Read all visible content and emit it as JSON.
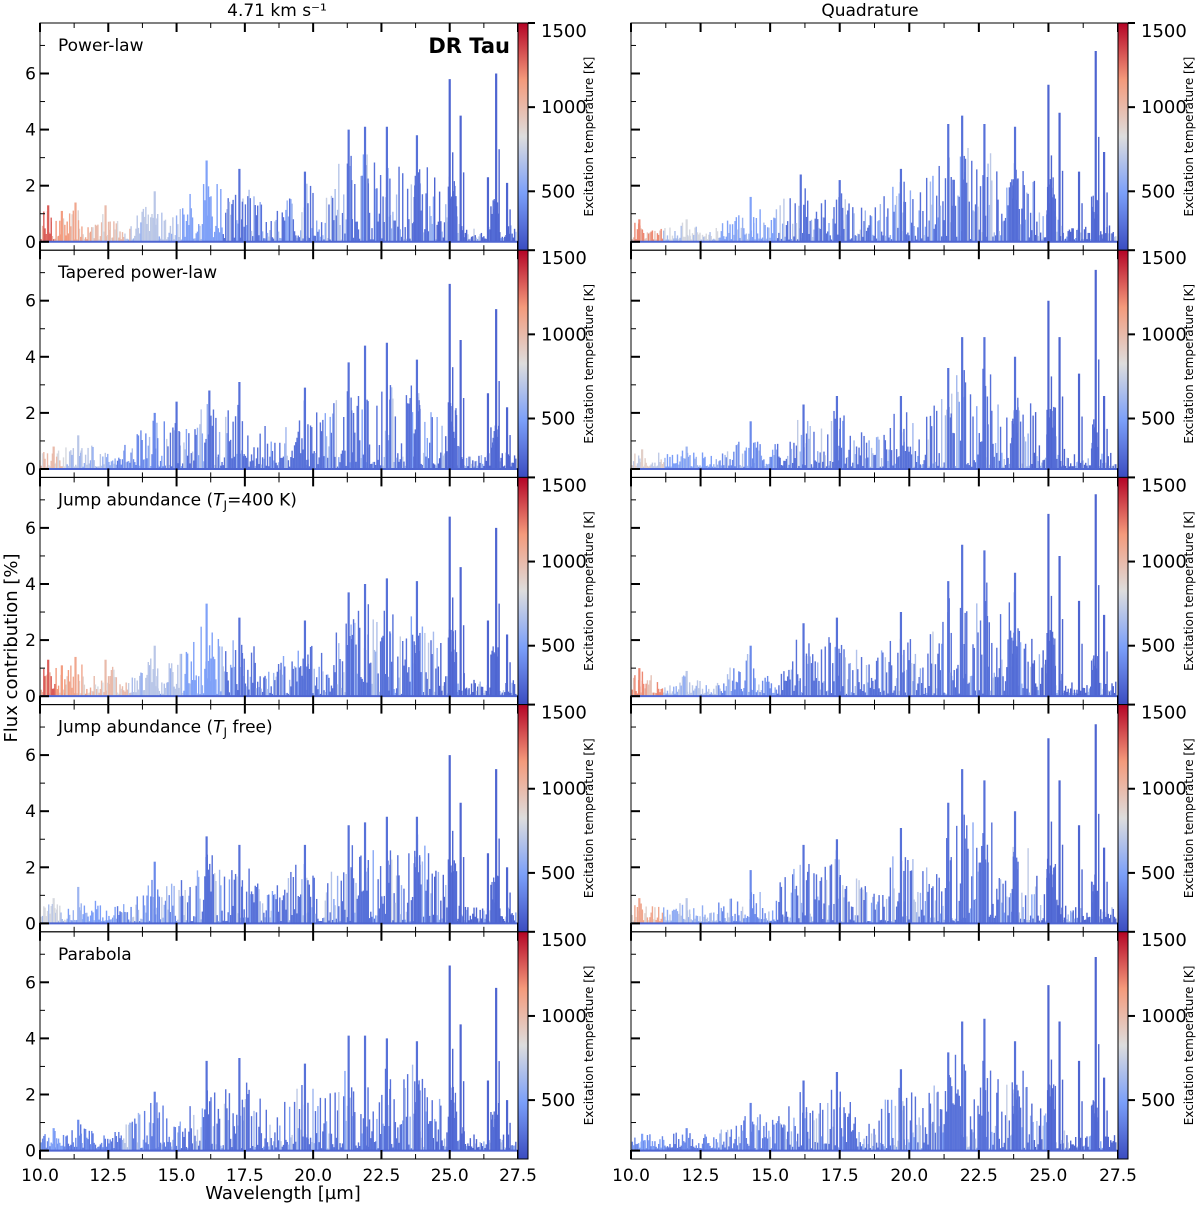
{
  "figure": {
    "star_label": "DR Tau",
    "ylabel": "Flux contribution [%]",
    "xlabel": "Wavelength [µm]",
    "column_titles": [
      "4.71 km s⁻¹",
      "Quadrature"
    ]
  },
  "colorbar": {
    "label": "Excitation temperature [K]",
    "ticks": [
      1500,
      1000,
      500
    ],
    "range": [
      150,
      1500
    ],
    "colormap": "coolwarm",
    "colors": {
      "low": "#3b4cc0",
      "mid": "#dddddd",
      "high": "#b40426"
    }
  },
  "chart_data": [
    {
      "type": "bar",
      "title": "Power-law",
      "column": "4.71 km s⁻¹",
      "xlim": [
        10.0,
        27.5
      ],
      "ylim": [
        -0.3,
        7.8
      ],
      "xticks": [
        10.0,
        12.5,
        15.0,
        17.5,
        20.0,
        22.5,
        25.0,
        27.5
      ],
      "yticks": [
        0,
        2,
        4,
        6
      ],
      "peaks": [
        {
          "x": 10.3,
          "y": 1.3,
          "t": 1300
        },
        {
          "x": 10.8,
          "y": 1.1,
          "t": 1150
        },
        {
          "x": 11.3,
          "y": 1.4,
          "t": 1100
        },
        {
          "x": 12.4,
          "y": 1.3,
          "t": 1000
        },
        {
          "x": 14.2,
          "y": 1.8,
          "t": 700
        },
        {
          "x": 16.1,
          "y": 2.9,
          "t": 500
        },
        {
          "x": 17.3,
          "y": 2.6,
          "t": 300
        },
        {
          "x": 19.7,
          "y": 2.5,
          "t": 300
        },
        {
          "x": 21.3,
          "y": 4.0,
          "t": 300
        },
        {
          "x": 21.9,
          "y": 4.1,
          "t": 300
        },
        {
          "x": 22.7,
          "y": 4.1,
          "t": 300
        },
        {
          "x": 23.8,
          "y": 3.8,
          "t": 300
        },
        {
          "x": 25.0,
          "y": 5.8,
          "t": 250
        },
        {
          "x": 25.4,
          "y": 4.5,
          "t": 250
        },
        {
          "x": 26.4,
          "y": 2.3,
          "t": 250
        },
        {
          "x": 26.7,
          "y": 6.0,
          "t": 250
        },
        {
          "x": 27.1,
          "y": 2.1,
          "t": 250
        }
      ]
    },
    {
      "type": "bar",
      "title": "",
      "column": "Quadrature",
      "xlim": [
        10.0,
        27.5
      ],
      "ylim": [
        -0.3,
        7.8
      ],
      "xticks": [
        10.0,
        12.5,
        15.0,
        17.5,
        20.0,
        22.5,
        25.0,
        27.5
      ],
      "yticks": [
        0,
        2,
        4,
        6
      ],
      "peaks": [
        {
          "x": 10.3,
          "y": 0.8,
          "t": 1200
        },
        {
          "x": 12.0,
          "y": 0.8,
          "t": 800
        },
        {
          "x": 14.3,
          "y": 1.6,
          "t": 500
        },
        {
          "x": 16.1,
          "y": 2.4,
          "t": 300
        },
        {
          "x": 17.5,
          "y": 2.2,
          "t": 300
        },
        {
          "x": 19.7,
          "y": 2.6,
          "t": 300
        },
        {
          "x": 21.4,
          "y": 4.2,
          "t": 300
        },
        {
          "x": 21.9,
          "y": 4.5,
          "t": 300
        },
        {
          "x": 22.7,
          "y": 4.2,
          "t": 300
        },
        {
          "x": 23.8,
          "y": 4.1,
          "t": 300
        },
        {
          "x": 25.0,
          "y": 5.6,
          "t": 250
        },
        {
          "x": 25.4,
          "y": 4.6,
          "t": 250
        },
        {
          "x": 26.1,
          "y": 2.5,
          "t": 250
        },
        {
          "x": 26.7,
          "y": 6.8,
          "t": 250
        },
        {
          "x": 27.0,
          "y": 3.2,
          "t": 250
        }
      ]
    },
    {
      "type": "bar",
      "title": "Tapered power-law",
      "column": "4.71 km s⁻¹",
      "xlim": [
        10.0,
        27.5
      ],
      "ylim": [
        -0.3,
        7.8
      ],
      "xticks": [
        10.0,
        12.5,
        15.0,
        17.5,
        20.0,
        22.5,
        25.0,
        27.5
      ],
      "yticks": [
        0,
        2,
        4,
        6
      ],
      "peaks": [
        {
          "x": 10.5,
          "y": 0.8,
          "t": 1000
        },
        {
          "x": 11.4,
          "y": 1.2,
          "t": 700
        },
        {
          "x": 14.2,
          "y": 2.0,
          "t": 400
        },
        {
          "x": 15.0,
          "y": 2.4,
          "t": 300
        },
        {
          "x": 16.2,
          "y": 2.8,
          "t": 300
        },
        {
          "x": 17.3,
          "y": 3.1,
          "t": 300
        },
        {
          "x": 19.7,
          "y": 2.9,
          "t": 300
        },
        {
          "x": 21.3,
          "y": 3.8,
          "t": 300
        },
        {
          "x": 21.9,
          "y": 4.4,
          "t": 300
        },
        {
          "x": 22.7,
          "y": 4.5,
          "t": 300
        },
        {
          "x": 23.8,
          "y": 3.9,
          "t": 300
        },
        {
          "x": 25.0,
          "y": 6.6,
          "t": 250
        },
        {
          "x": 25.4,
          "y": 4.6,
          "t": 250
        },
        {
          "x": 26.4,
          "y": 2.7,
          "t": 250
        },
        {
          "x": 26.7,
          "y": 5.7,
          "t": 250
        },
        {
          "x": 27.1,
          "y": 2.2,
          "t": 250
        }
      ]
    },
    {
      "type": "bar",
      "title": "",
      "column": "Quadrature",
      "xlim": [
        10.0,
        27.5
      ],
      "ylim": [
        -0.3,
        7.8
      ],
      "xticks": [
        10.0,
        12.5,
        15.0,
        17.5,
        20.0,
        22.5,
        25.0,
        27.5
      ],
      "yticks": [
        0,
        2,
        4,
        6
      ],
      "peaks": [
        {
          "x": 10.4,
          "y": 0.7,
          "t": 900
        },
        {
          "x": 12.0,
          "y": 0.8,
          "t": 600
        },
        {
          "x": 14.3,
          "y": 1.7,
          "t": 400
        },
        {
          "x": 16.2,
          "y": 2.3,
          "t": 300
        },
        {
          "x": 17.4,
          "y": 2.6,
          "t": 300
        },
        {
          "x": 19.7,
          "y": 2.6,
          "t": 300
        },
        {
          "x": 21.4,
          "y": 3.6,
          "t": 300
        },
        {
          "x": 21.9,
          "y": 4.7,
          "t": 300
        },
        {
          "x": 22.7,
          "y": 4.7,
          "t": 300
        },
        {
          "x": 23.8,
          "y": 4.0,
          "t": 300
        },
        {
          "x": 25.0,
          "y": 6.0,
          "t": 250
        },
        {
          "x": 25.4,
          "y": 4.7,
          "t": 250
        },
        {
          "x": 26.1,
          "y": 3.4,
          "t": 250
        },
        {
          "x": 26.7,
          "y": 7.1,
          "t": 250
        },
        {
          "x": 27.0,
          "y": 2.6,
          "t": 250
        }
      ]
    },
    {
      "type": "bar",
      "title": "Jump abundance (T_J=400 K)",
      "title_parts": {
        "before": "Jump abundance (",
        "italic": "T",
        "sub": "J",
        "after": "=400 K)"
      },
      "column": "4.71 km s⁻¹",
      "xlim": [
        10.0,
        27.5
      ],
      "ylim": [
        -0.3,
        7.8
      ],
      "xticks": [
        10.0,
        12.5,
        15.0,
        17.5,
        20.0,
        22.5,
        25.0,
        27.5
      ],
      "yticks": [
        0,
        2,
        4,
        6
      ],
      "peaks": [
        {
          "x": 10.3,
          "y": 1.3,
          "t": 1300
        },
        {
          "x": 10.8,
          "y": 1.1,
          "t": 1150
        },
        {
          "x": 11.3,
          "y": 1.4,
          "t": 1100
        },
        {
          "x": 12.4,
          "y": 1.3,
          "t": 1000
        },
        {
          "x": 14.2,
          "y": 1.8,
          "t": 700
        },
        {
          "x": 16.1,
          "y": 3.3,
          "t": 500
        },
        {
          "x": 17.3,
          "y": 2.8,
          "t": 300
        },
        {
          "x": 19.7,
          "y": 2.7,
          "t": 300
        },
        {
          "x": 21.3,
          "y": 3.7,
          "t": 300
        },
        {
          "x": 21.9,
          "y": 4.0,
          "t": 300
        },
        {
          "x": 22.7,
          "y": 4.2,
          "t": 300
        },
        {
          "x": 23.8,
          "y": 4.1,
          "t": 300
        },
        {
          "x": 25.0,
          "y": 6.4,
          "t": 250
        },
        {
          "x": 25.4,
          "y": 4.6,
          "t": 250
        },
        {
          "x": 26.4,
          "y": 2.7,
          "t": 250
        },
        {
          "x": 26.7,
          "y": 6.0,
          "t": 250
        },
        {
          "x": 27.1,
          "y": 2.2,
          "t": 250
        }
      ]
    },
    {
      "type": "bar",
      "title": "",
      "column": "Quadrature",
      "xlim": [
        10.0,
        27.5
      ],
      "ylim": [
        -0.3,
        7.8
      ],
      "xticks": [
        10.0,
        12.5,
        15.0,
        17.5,
        20.0,
        22.5,
        25.0,
        27.5
      ],
      "yticks": [
        0,
        2,
        4,
        6
      ],
      "peaks": [
        {
          "x": 10.3,
          "y": 1.0,
          "t": 1200
        },
        {
          "x": 12.0,
          "y": 0.9,
          "t": 700
        },
        {
          "x": 14.3,
          "y": 1.8,
          "t": 400
        },
        {
          "x": 16.2,
          "y": 2.6,
          "t": 300
        },
        {
          "x": 17.4,
          "y": 2.8,
          "t": 300
        },
        {
          "x": 19.7,
          "y": 3.0,
          "t": 300
        },
        {
          "x": 21.4,
          "y": 4.1,
          "t": 300
        },
        {
          "x": 21.9,
          "y": 5.4,
          "t": 300
        },
        {
          "x": 22.7,
          "y": 5.2,
          "t": 300
        },
        {
          "x": 23.8,
          "y": 4.4,
          "t": 300
        },
        {
          "x": 25.0,
          "y": 6.5,
          "t": 250
        },
        {
          "x": 25.4,
          "y": 5.0,
          "t": 250
        },
        {
          "x": 26.1,
          "y": 3.4,
          "t": 250
        },
        {
          "x": 26.7,
          "y": 7.2,
          "t": 250
        },
        {
          "x": 27.0,
          "y": 2.9,
          "t": 250
        }
      ]
    },
    {
      "type": "bar",
      "title": "Jump abundance (T_J free)",
      "title_parts": {
        "before": "Jump abundance (",
        "italic": "T",
        "sub": "J",
        "after": " free)"
      },
      "column": "4.71 km s⁻¹",
      "xlim": [
        10.0,
        27.5
      ],
      "ylim": [
        -0.3,
        7.8
      ],
      "xticks": [
        10.0,
        12.5,
        15.0,
        17.5,
        20.0,
        22.5,
        25.0,
        27.5
      ],
      "yticks": [
        0,
        2,
        4,
        6
      ],
      "peaks": [
        {
          "x": 10.5,
          "y": 0.9,
          "t": 800
        },
        {
          "x": 11.4,
          "y": 1.3,
          "t": 600
        },
        {
          "x": 14.2,
          "y": 2.2,
          "t": 400
        },
        {
          "x": 16.1,
          "y": 3.1,
          "t": 300
        },
        {
          "x": 17.3,
          "y": 2.8,
          "t": 300
        },
        {
          "x": 19.7,
          "y": 2.8,
          "t": 300
        },
        {
          "x": 21.3,
          "y": 3.5,
          "t": 300
        },
        {
          "x": 21.9,
          "y": 3.6,
          "t": 300
        },
        {
          "x": 22.7,
          "y": 3.8,
          "t": 300
        },
        {
          "x": 23.8,
          "y": 3.8,
          "t": 300
        },
        {
          "x": 25.0,
          "y": 6.0,
          "t": 250
        },
        {
          "x": 25.4,
          "y": 4.3,
          "t": 250
        },
        {
          "x": 26.4,
          "y": 2.5,
          "t": 250
        },
        {
          "x": 26.7,
          "y": 5.5,
          "t": 250
        },
        {
          "x": 27.1,
          "y": 2.0,
          "t": 250
        }
      ]
    },
    {
      "type": "bar",
      "title": "",
      "column": "Quadrature",
      "xlim": [
        10.0,
        27.5
      ],
      "ylim": [
        -0.3,
        7.8
      ],
      "xticks": [
        10.0,
        12.5,
        15.0,
        17.5,
        20.0,
        22.5,
        25.0,
        27.5
      ],
      "yticks": [
        0,
        2,
        4,
        6
      ],
      "peaks": [
        {
          "x": 10.3,
          "y": 0.9,
          "t": 1100
        },
        {
          "x": 12.0,
          "y": 0.9,
          "t": 700
        },
        {
          "x": 14.3,
          "y": 1.9,
          "t": 400
        },
        {
          "x": 16.2,
          "y": 2.8,
          "t": 300
        },
        {
          "x": 17.4,
          "y": 3.0,
          "t": 300
        },
        {
          "x": 19.7,
          "y": 3.4,
          "t": 300
        },
        {
          "x": 21.4,
          "y": 4.3,
          "t": 300
        },
        {
          "x": 21.9,
          "y": 5.5,
          "t": 300
        },
        {
          "x": 22.7,
          "y": 5.1,
          "t": 300
        },
        {
          "x": 23.8,
          "y": 4.0,
          "t": 300
        },
        {
          "x": 25.0,
          "y": 6.6,
          "t": 250
        },
        {
          "x": 25.4,
          "y": 5.1,
          "t": 250
        },
        {
          "x": 26.1,
          "y": 3.5,
          "t": 250
        },
        {
          "x": 26.7,
          "y": 7.1,
          "t": 250
        },
        {
          "x": 27.0,
          "y": 2.7,
          "t": 250
        }
      ]
    },
    {
      "type": "bar",
      "title": "Parabola",
      "column": "4.71 km s⁻¹",
      "xlim": [
        10.0,
        27.5
      ],
      "ylim": [
        -0.3,
        7.8
      ],
      "xticks": [
        10.0,
        12.5,
        15.0,
        17.5,
        20.0,
        22.5,
        25.0,
        27.5
      ],
      "yticks": [
        0,
        2,
        4,
        6
      ],
      "peaks": [
        {
          "x": 10.5,
          "y": 0.8,
          "t": 500
        },
        {
          "x": 11.4,
          "y": 1.1,
          "t": 400
        },
        {
          "x": 14.2,
          "y": 2.1,
          "t": 350
        },
        {
          "x": 16.1,
          "y": 3.2,
          "t": 300
        },
        {
          "x": 17.3,
          "y": 3.3,
          "t": 300
        },
        {
          "x": 19.7,
          "y": 3.1,
          "t": 300
        },
        {
          "x": 21.3,
          "y": 4.1,
          "t": 300
        },
        {
          "x": 21.9,
          "y": 4.1,
          "t": 300
        },
        {
          "x": 22.7,
          "y": 4.0,
          "t": 300
        },
        {
          "x": 23.8,
          "y": 3.9,
          "t": 300
        },
        {
          "x": 25.0,
          "y": 6.6,
          "t": 250
        },
        {
          "x": 25.4,
          "y": 4.5,
          "t": 250
        },
        {
          "x": 26.4,
          "y": 2.5,
          "t": 250
        },
        {
          "x": 26.7,
          "y": 5.8,
          "t": 250
        },
        {
          "x": 27.1,
          "y": 1.8,
          "t": 250
        }
      ]
    },
    {
      "type": "bar",
      "title": "",
      "column": "Quadrature",
      "xlim": [
        10.0,
        27.5
      ],
      "ylim": [
        -0.3,
        7.8
      ],
      "xticks": [
        10.0,
        12.5,
        15.0,
        17.5,
        20.0,
        22.5,
        25.0,
        27.5
      ],
      "yticks": [
        0,
        2,
        4,
        6
      ],
      "peaks": [
        {
          "x": 10.4,
          "y": 0.6,
          "t": 500
        },
        {
          "x": 12.0,
          "y": 0.8,
          "t": 400
        },
        {
          "x": 14.3,
          "y": 1.7,
          "t": 350
        },
        {
          "x": 16.2,
          "y": 2.5,
          "t": 300
        },
        {
          "x": 17.4,
          "y": 2.8,
          "t": 300
        },
        {
          "x": 19.7,
          "y": 2.9,
          "t": 300
        },
        {
          "x": 21.4,
          "y": 3.5,
          "t": 300
        },
        {
          "x": 21.9,
          "y": 4.6,
          "t": 300
        },
        {
          "x": 22.7,
          "y": 4.7,
          "t": 300
        },
        {
          "x": 23.8,
          "y": 3.9,
          "t": 300
        },
        {
          "x": 25.0,
          "y": 5.9,
          "t": 250
        },
        {
          "x": 25.4,
          "y": 4.6,
          "t": 250
        },
        {
          "x": 26.1,
          "y": 3.2,
          "t": 250
        },
        {
          "x": 26.7,
          "y": 6.9,
          "t": 250
        },
        {
          "x": 27.0,
          "y": 2.6,
          "t": 250
        }
      ]
    }
  ]
}
